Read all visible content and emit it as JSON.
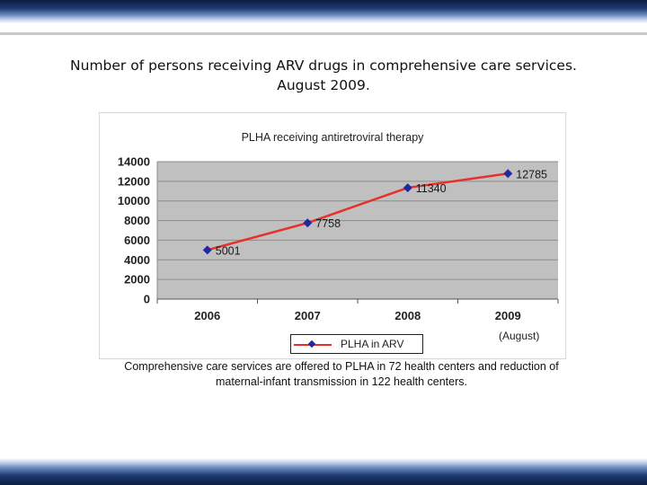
{
  "slide": {
    "title_line1": "Number of persons receiving ARV drugs in comprehensive care services.",
    "title_line2": "August 2009.",
    "caption_line1": "Comprehensive care services are offered to PLHA in 72 health centers and reduction of",
    "caption_line2": "maternal-infant transmission in 122 health centers."
  },
  "colors": {
    "plot_bg": "#c0c0c0",
    "line": "#e8302a",
    "marker": "#1f2a9e",
    "grid": "#8c8c8c"
  },
  "chart_data": {
    "type": "line",
    "title": "PLHA receiving antiretroviral therapy",
    "categories": [
      "2006",
      "2007",
      "2008",
      "2009"
    ],
    "series": [
      {
        "name": "PLHA in ARV",
        "values": [
          5001,
          7758,
          11340,
          12785
        ]
      }
    ],
    "data_labels": [
      "5001",
      "7758",
      "11340",
      "12785"
    ],
    "y_ticks": [
      0,
      2000,
      4000,
      6000,
      8000,
      10000,
      12000,
      14000
    ],
    "ylim": [
      0,
      14000
    ],
    "xlabel": "",
    "ylabel": "",
    "grid": true,
    "legend_position": "bottom",
    "annotation": "(August)"
  }
}
